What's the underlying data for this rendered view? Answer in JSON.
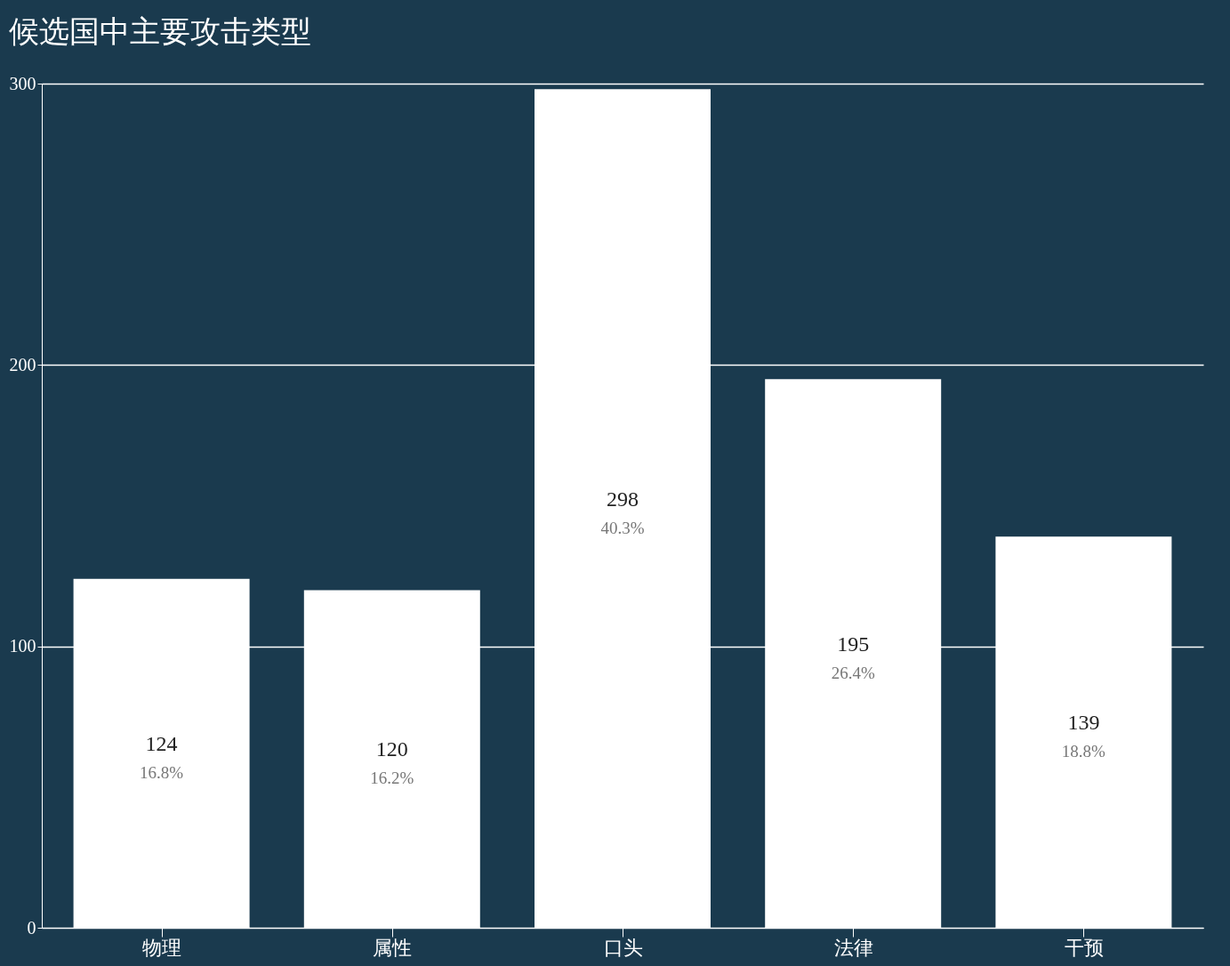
{
  "chart_data": {
    "type": "bar",
    "title": "候选国中主要攻击类型",
    "categories": [
      "物理",
      "属性",
      "口头",
      "法律",
      "干预"
    ],
    "values": [
      124,
      120,
      298,
      195,
      139
    ],
    "color": "#ffffff",
    "data_labels": true,
    "annotations": [
      "16.8%",
      "16.2%",
      "40.3%",
      "26.4%",
      "18.8%"
    ],
    "ylim": [
      0,
      300
    ],
    "yticks": [
      0,
      100,
      200,
      300
    ],
    "grid": "y"
  }
}
